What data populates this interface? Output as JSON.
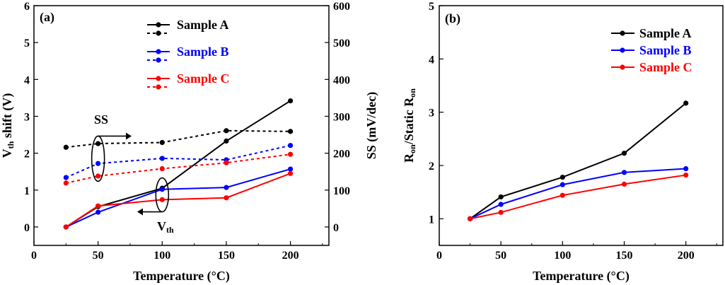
{
  "chart_data": [
    {
      "panel_label": "(a)",
      "type": "line",
      "x": [
        25,
        50,
        100,
        150,
        200
      ],
      "xlabel": "Temperature (°C)",
      "xlim": [
        0,
        230
      ],
      "xticks": [
        0,
        50,
        100,
        150,
        200
      ],
      "ylabel_left": {
        "base": "V",
        "sub": "th",
        "rest": " shift (V)"
      },
      "ylim_left": [
        -0.5,
        6
      ],
      "yticks_left": [
        0,
        1,
        2,
        3,
        4,
        5,
        6
      ],
      "ylabel_right": "SS (mV/dec)",
      "ylim_right": [
        -50,
        600
      ],
      "yticks_right": [
        0,
        100,
        200,
        300,
        400,
        500,
        600
      ],
      "series": [
        {
          "name": "Sample A",
          "axis": "left",
          "style": "solid",
          "color": "#000000",
          "values": [
            0,
            0.55,
            1.05,
            2.33,
            3.42
          ]
        },
        {
          "name": "Sample B",
          "axis": "left",
          "style": "solid",
          "color": "#0000ff",
          "values": [
            0,
            0.4,
            1.02,
            1.07,
            1.57
          ]
        },
        {
          "name": "Sample C",
          "axis": "left",
          "style": "solid",
          "color": "#ff0000",
          "values": [
            0,
            0.57,
            0.74,
            0.79,
            1.45
          ]
        },
        {
          "name": "Sample A",
          "axis": "right",
          "style": "dotted",
          "color": "#000000",
          "values": [
            216,
            226,
            229,
            261,
            259
          ]
        },
        {
          "name": "Sample B",
          "axis": "right",
          "style": "dotted",
          "color": "#0000ff",
          "values": [
            134,
            172,
            186,
            182,
            221
          ]
        },
        {
          "name": "Sample C",
          "axis": "right",
          "style": "dotted",
          "color": "#ff0000",
          "values": [
            119,
            138,
            158,
            174,
            197
          ]
        }
      ],
      "legend": {
        "placement": "top-center",
        "entries": [
          "Sample A",
          "Sample B",
          "Sample C"
        ]
      },
      "annotations": {
        "ss_label": "SS",
        "vth_label": {
          "base": "V",
          "sub": "th"
        }
      }
    },
    {
      "panel_label": "(b)",
      "type": "line",
      "x": [
        25,
        50,
        100,
        150,
        200
      ],
      "xlabel": "Temperature (°C)",
      "xlim": [
        0,
        230
      ],
      "xticks": [
        0,
        50,
        100,
        150,
        200
      ],
      "ylabel": {
        "a": "R",
        "a_sub": "on",
        "mid": "/Static R",
        "b_sub": "on"
      },
      "ylim": [
        0.5,
        5
      ],
      "yticks": [
        1,
        2,
        3,
        4,
        5
      ],
      "series": [
        {
          "name": "Sample A",
          "color": "#000000",
          "values": [
            1.0,
            1.41,
            1.78,
            2.23,
            3.17
          ]
        },
        {
          "name": "Sample B",
          "color": "#0000ff",
          "values": [
            1.0,
            1.27,
            1.64,
            1.87,
            1.94
          ]
        },
        {
          "name": "Sample C",
          "color": "#ff0000",
          "values": [
            1.0,
            1.12,
            1.44,
            1.65,
            1.82
          ]
        }
      ],
      "legend": {
        "placement": "top-right",
        "entries": [
          "Sample A",
          "Sample B",
          "Sample C"
        ]
      }
    }
  ]
}
